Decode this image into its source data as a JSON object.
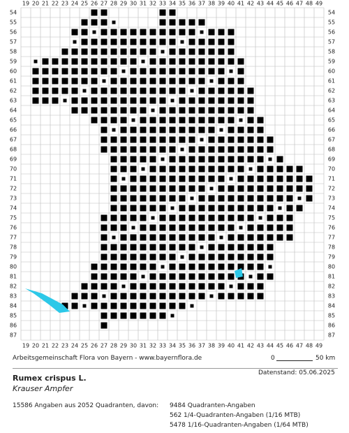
{
  "map": {
    "columns": [
      19,
      20,
      21,
      22,
      23,
      24,
      25,
      26,
      27,
      28,
      29,
      30,
      31,
      32,
      33,
      34,
      35,
      36,
      37,
      38,
      39,
      40,
      41,
      42,
      43,
      44,
      45,
      46,
      47,
      48,
      49
    ],
    "rows": [
      54,
      55,
      56,
      57,
      58,
      59,
      60,
      61,
      62,
      63,
      64,
      65,
      66,
      67,
      68,
      69,
      70,
      71,
      72,
      73,
      74,
      75,
      76,
      77,
      78,
      79,
      80,
      81,
      82,
      83,
      84,
      85,
      86,
      87
    ]
  },
  "footer": {
    "credit": "Arbeitsgemeinschaft Flora von Bayern - www.bayernflora.de",
    "scale_start": "0",
    "scale_end": "50 km",
    "date": "Datenstand: 05.06.2025",
    "species": "Rumex crispus L.",
    "common_name": "Krauser Ampfer",
    "summary": "15586 Angaben aus 2052 Quadranten, davon:",
    "count_quadrant": "9484 Quadranten-Angaben",
    "count_quarter": "562 1/4-Quadranten-Angaben (1/16 MTB)",
    "count_sixteenth": "5478 1/16-Quadranten-Angaben (1/64 MTB)"
  }
}
